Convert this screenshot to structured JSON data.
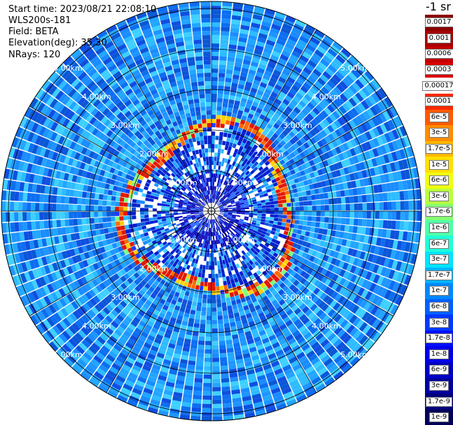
{
  "header": {
    "start_time": "Start time: 2023/08/21 22:08:10",
    "station": "WLS200s-181",
    "field": "Field: BETA",
    "elevation": "Elevation(deg): 35.30",
    "nrays": "NRays: 120"
  },
  "colorbar": {
    "unit": "-1 sr",
    "entries": [
      {
        "label": "0.0017",
        "color": "#8b0000"
      },
      {
        "label": "0.001",
        "color": "#a80000"
      },
      {
        "label": "0.0006",
        "color": "#c20000"
      },
      {
        "label": "0.0003",
        "color": "#dd0000"
      },
      {
        "label": "0.00017",
        "color": "#ffffff"
      },
      {
        "label": "0.0001",
        "color": "#ff2a00"
      },
      {
        "label": "6e-5",
        "color": "#ff5a00"
      },
      {
        "label": "3e-5",
        "color": "#ff8c00"
      },
      {
        "label": "1.7e-5",
        "color": "#ffb800"
      },
      {
        "label": "1e-5",
        "color": "#ffe000"
      },
      {
        "label": "6e-6",
        "color": "#f0ff10"
      },
      {
        "label": "3e-6",
        "color": "#b8ff40"
      },
      {
        "label": "1.7e-6",
        "color": "#84ff74"
      },
      {
        "label": "1e-6",
        "color": "#50ffa8"
      },
      {
        "label": "6e-7",
        "color": "#20ffd8"
      },
      {
        "label": "3e-7",
        "color": "#00e4ff"
      },
      {
        "label": "1.7e-7",
        "color": "#00b4ff"
      },
      {
        "label": "1e-7",
        "color": "#0088ff"
      },
      {
        "label": "6e-8",
        "color": "#0060ff"
      },
      {
        "label": "3e-8",
        "color": "#0038ff"
      },
      {
        "label": "1.7e-8",
        "color": "#0010ff"
      },
      {
        "label": "1e-8",
        "color": "#0000e8"
      },
      {
        "label": "6e-9",
        "color": "#0000c4"
      },
      {
        "label": "3e-9",
        "color": "#0000a0"
      },
      {
        "label": "1.7e-9",
        "color": "#00007c"
      },
      {
        "label": "1e-9",
        "color": "#000058"
      }
    ]
  },
  "range_rings": [
    {
      "label": "1.00km"
    },
    {
      "label": "2.00km"
    },
    {
      "label": "3.00km"
    },
    {
      "label": "4.00km"
    },
    {
      "label": "5.00km"
    }
  ]
}
